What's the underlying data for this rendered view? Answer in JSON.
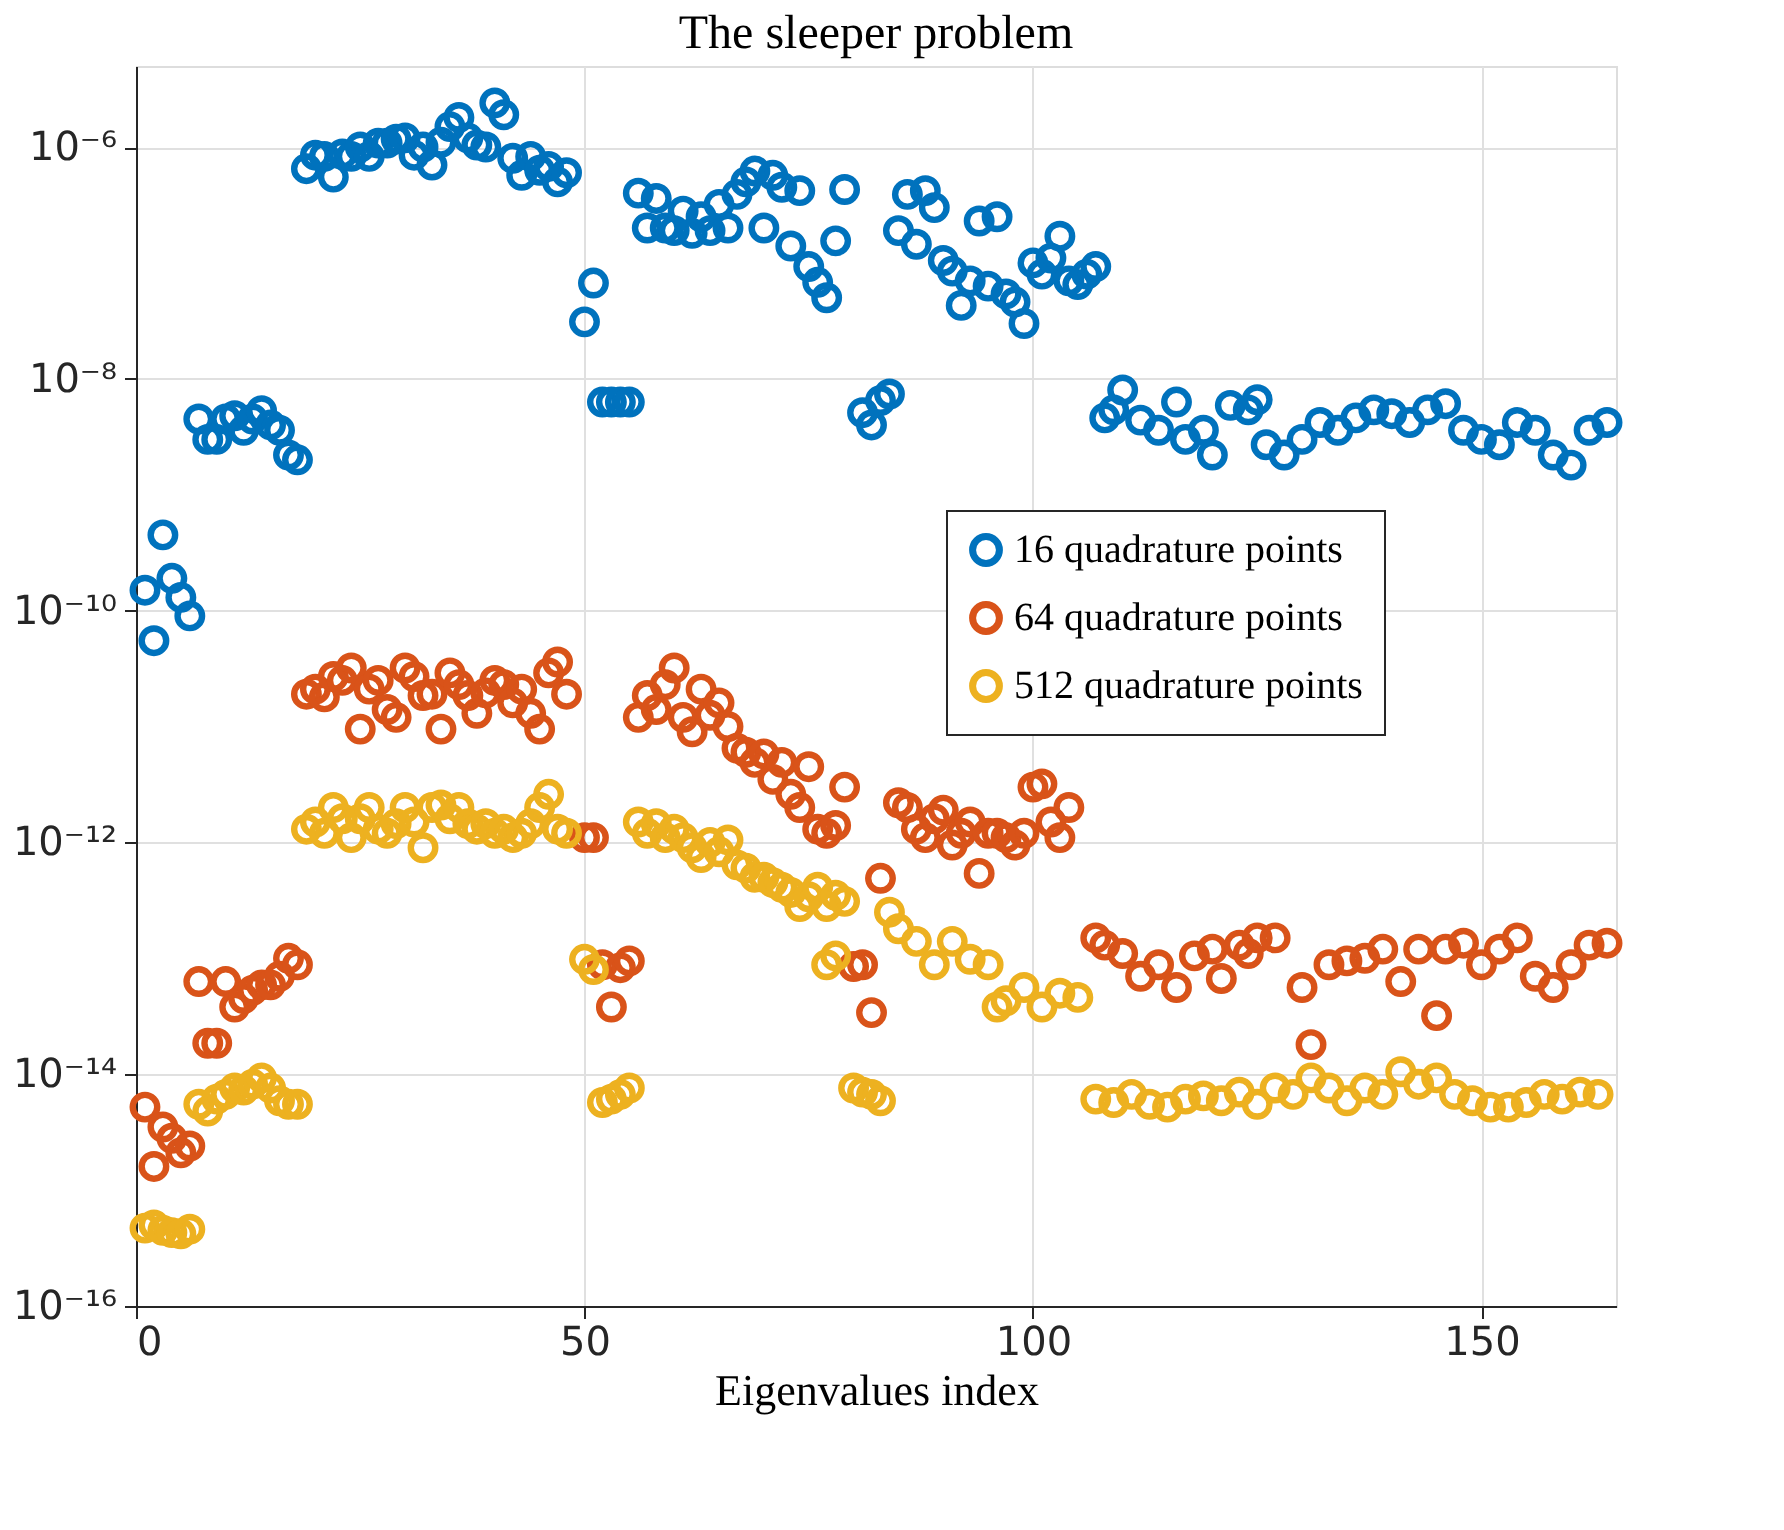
{
  "chart_data": {
    "type": "scatter",
    "title": "The sleeper problem",
    "xlabel": "Eigenvalues index",
    "xlim": [
      0,
      165
    ],
    "xticks": [
      0,
      50,
      100,
      150
    ],
    "ylim": [
      1e-16,
      5e-06
    ],
    "yticks": [
      {
        "value": 1e-16,
        "label": "10⁻¹⁶"
      },
      {
        "value": 1e-14,
        "label": "10⁻¹⁴"
      },
      {
        "value": 1e-12,
        "label": "10⁻¹²"
      },
      {
        "value": 1e-10,
        "label": "10⁻¹⁰"
      },
      {
        "value": 1e-08,
        "label": "10⁻⁸"
      },
      {
        "value": 1e-06,
        "label": "10⁻⁶"
      }
    ],
    "log": "y",
    "grid": true,
    "legend": "right",
    "marker": "circle",
    "series": [
      {
        "name": "16 quadrature points",
        "color": "#0072bd",
        "x": [
          1,
          2,
          3,
          4,
          5,
          6,
          7,
          8,
          9,
          10,
          11,
          12,
          13,
          14,
          15,
          16,
          17,
          18,
          19,
          20,
          21,
          22,
          23,
          24,
          25,
          26,
          27,
          28,
          29,
          30,
          31,
          32,
          33,
          34,
          35,
          36,
          37,
          38,
          39,
          40,
          41,
          42,
          43,
          44,
          45,
          46,
          47,
          48,
          50,
          51,
          52,
          53,
          54,
          55,
          56,
          57,
          58,
          59,
          60,
          61,
          62,
          63,
          64,
          65,
          66,
          67,
          68,
          69,
          70,
          71,
          72,
          73,
          74,
          75,
          76,
          77,
          78,
          79,
          81,
          82,
          83,
          84,
          85,
          86,
          87,
          88,
          89,
          90,
          91,
          92,
          93,
          94,
          95,
          96,
          97,
          98,
          99,
          100,
          101,
          102,
          103,
          104,
          105,
          106,
          107,
          108,
          109,
          110,
          112,
          114,
          116,
          117,
          119,
          120,
          122,
          124,
          125,
          126,
          128,
          130,
          132,
          134,
          136,
          138,
          140,
          142,
          144,
          146,
          148,
          150,
          152,
          154,
          156,
          158,
          160,
          162,
          164
        ],
        "values": [
          1.5e-10,
          5.5e-11,
          4.5e-10,
          1.9e-10,
          1.3e-10,
          9e-11,
          4.5e-09,
          3e-09,
          3e-09,
          4.5e-09,
          4.8e-09,
          3.6e-09,
          4.5e-09,
          5.3e-09,
          4e-09,
          3.6e-09,
          2.2e-09,
          2e-09,
          6.5e-07,
          8.5e-07,
          8.3e-07,
          5.5e-07,
          8.7e-07,
          8.3e-07,
          1e-06,
          8.3e-07,
          1.08e-06,
          1.08e-06,
          1.17e-06,
          1.2e-06,
          8.5e-07,
          1e-06,
          7e-07,
          1.1e-06,
          1.5e-06,
          1.8e-06,
          1.2e-06,
          1.04e-06,
          1e-06,
          2.4e-06,
          1.9e-06,
          8e-07,
          5.7e-07,
          8.3e-07,
          6.3e-07,
          6.8e-07,
          5e-07,
          6e-07,
          3.1e-08,
          6.7e-08,
          6.3e-09,
          6.3e-09,
          6.3e-09,
          6.3e-09,
          4e-07,
          2e-07,
          3.6e-07,
          2e-07,
          1.9e-07,
          2.8e-07,
          1.8e-07,
          2.5e-07,
          1.9e-07,
          3.2e-07,
          2e-07,
          3.9e-07,
          5e-07,
          6.2e-07,
          2e-07,
          5.7e-07,
          4.5e-07,
          1.4e-07,
          4.2e-07,
          9.3e-08,
          6.8e-08,
          5e-08,
          1.55e-07,
          4.3e-07,
          5.1e-09,
          4e-09,
          6.5e-09,
          7.4e-09,
          1.9e-07,
          3.9e-07,
          1.45e-07,
          4.2e-07,
          3e-07,
          1.05e-07,
          8.5e-08,
          4.3e-08,
          7e-08,
          2.3e-07,
          6.3e-08,
          2.5e-07,
          5.4e-08,
          4.6e-08,
          3e-08,
          1e-07,
          8e-08,
          1.1e-07,
          1.7e-07,
          7e-08,
          6.5e-08,
          8e-08,
          9.3e-08,
          4.6e-09,
          5.4e-09,
          8e-09,
          4.4e-09,
          3.6e-09,
          6.3e-09,
          3e-09,
          3.6e-09,
          2.2e-09,
          5.9e-09,
          5.4e-09,
          6.6e-09,
          2.7e-09,
          2.2e-09,
          3e-09,
          4.2e-09,
          3.6e-09,
          4.6e-09,
          5.4e-09,
          5e-09,
          4.2e-09,
          5.4e-09,
          6.1e-09,
          3.6e-09,
          3e-09,
          2.7e-09,
          4.2e-09,
          3.6e-09,
          2.2e-09,
          1.8e-09,
          3.6e-09,
          4.2e-09
        ]
      },
      {
        "name": "64 quadrature points",
        "color": "#d95319",
        "x": [
          1,
          2,
          3,
          4,
          5,
          6,
          7,
          8,
          9,
          10,
          11,
          12,
          13,
          14,
          15,
          16,
          17,
          18,
          19,
          20,
          21,
          22,
          23,
          24,
          25,
          26,
          27,
          28,
          29,
          30,
          31,
          32,
          33,
          34,
          35,
          36,
          37,
          38,
          39,
          40,
          41,
          42,
          43,
          44,
          45,
          46,
          47,
          48,
          50,
          51,
          52,
          53,
          54,
          55,
          56,
          57,
          58,
          59,
          60,
          61,
          62,
          63,
          64,
          65,
          66,
          67,
          68,
          69,
          70,
          71,
          72,
          73,
          74,
          75,
          76,
          77,
          78,
          79,
          80,
          81,
          82,
          83,
          85,
          86,
          87,
          88,
          89,
          90,
          91,
          92,
          93,
          94,
          95,
          96,
          97,
          98,
          99,
          100,
          101,
          102,
          103,
          104,
          107,
          108,
          110,
          112,
          114,
          116,
          118,
          120,
          121,
          123,
          124,
          125,
          127,
          130,
          131,
          133,
          135,
          137,
          139,
          141,
          143,
          145,
          146,
          148,
          150,
          152,
          154,
          156,
          158,
          160,
          162,
          164
        ],
        "values": [
          5.2e-15,
          1.6e-15,
          3.5e-15,
          2.8e-15,
          2.1e-15,
          2.4e-15,
          6.3e-14,
          1.85e-14,
          1.85e-14,
          6.3e-14,
          3.8e-14,
          4.5e-14,
          5.3e-14,
          5.9e-14,
          5.9e-14,
          7e-14,
          1e-13,
          8.8e-14,
          1.9e-11,
          2.1e-11,
          1.8e-11,
          2.7e-11,
          2.5e-11,
          3.2e-11,
          9.5e-12,
          2.1e-11,
          2.5e-11,
          1.4e-11,
          1.2e-11,
          3.2e-11,
          2.7e-11,
          1.85e-11,
          1.9e-11,
          9.5e-12,
          2.9e-11,
          2.3e-11,
          1.85e-11,
          1.3e-11,
          1.95e-11,
          2.5e-11,
          2.3e-11,
          1.6e-11,
          2.1e-11,
          1.3e-11,
          9.5e-12,
          2.9e-11,
          3.6e-11,
          1.9e-11,
          1.1e-12,
          1.1e-12,
          8.8e-14,
          3.8e-14,
          8.3e-14,
          9.5e-14,
          1.2e-11,
          1.85e-11,
          1.4e-11,
          2.3e-11,
          3.2e-11,
          1.2e-11,
          9e-12,
          2.1e-11,
          1.25e-11,
          1.6e-11,
          1e-11,
          6.5e-12,
          6e-12,
          4.9e-12,
          5.8e-12,
          3.5e-12,
          4.9e-12,
          2.6e-12,
          2e-12,
          4.5e-12,
          1.3e-12,
          1.2e-12,
          1.4e-12,
          3e-12,
          8.5e-14,
          8.8e-14,
          3.4e-14,
          4.9e-13,
          2.2e-12,
          2e-12,
          1.3e-12,
          1.1e-12,
          1.6e-12,
          1.9e-12,
          9.5e-13,
          1.2e-12,
          1.5e-12,
          5.4e-13,
          1.2e-12,
          1.2e-12,
          1.1e-12,
          9.5e-13,
          1.2e-12,
          3e-12,
          3.2e-12,
          1.5e-12,
          1.1e-12,
          2e-12,
          1.5e-13,
          1.3e-13,
          1.1e-13,
          7e-14,
          8.8e-14,
          5.6e-14,
          1.05e-13,
          1.2e-13,
          6.7e-14,
          1.3e-13,
          1.1e-13,
          1.5e-13,
          1.5e-13,
          5.6e-14,
          1.8e-14,
          8.8e-14,
          9.5e-14,
          1e-13,
          1.2e-13,
          6.3e-14,
          1.2e-13,
          3.2e-14,
          1.2e-13,
          1.35e-13,
          8.8e-14,
          1.2e-13,
          1.5e-13,
          7e-14,
          5.6e-14,
          8.8e-14,
          1.3e-13,
          1.35e-13
        ]
      },
      {
        "name": "512 quadrature points",
        "color": "#edb120",
        "x": [
          1,
          2,
          3,
          4,
          5,
          6,
          7,
          8,
          9,
          10,
          11,
          12,
          13,
          14,
          15,
          16,
          17,
          18,
          19,
          20,
          21,
          22,
          23,
          24,
          25,
          26,
          27,
          28,
          29,
          30,
          31,
          32,
          33,
          34,
          35,
          36,
          37,
          38,
          39,
          40,
          41,
          42,
          43,
          44,
          45,
          46,
          47,
          48,
          50,
          51,
          52,
          53,
          54,
          55,
          56,
          57,
          58,
          59,
          60,
          61,
          62,
          63,
          64,
          65,
          66,
          67,
          68,
          69,
          70,
          71,
          72,
          73,
          74,
          75,
          76,
          77,
          78,
          79,
          77,
          78,
          80,
          81,
          82,
          83,
          84,
          85,
          87,
          89,
          91,
          93,
          95,
          96,
          97,
          99,
          101,
          103,
          105,
          107,
          109,
          111,
          113,
          115,
          117,
          119,
          121,
          123,
          125,
          127,
          129,
          131,
          133,
          135,
          137,
          139,
          141,
          143,
          145,
          147,
          149,
          151,
          153,
          155,
          157,
          159,
          161,
          163
        ],
        "values": [
          4.7e-16,
          5e-16,
          4.5e-16,
          4.3e-16,
          4.2e-16,
          4.6e-16,
          5.5e-15,
          4.8e-15,
          6.1e-15,
          6.7e-15,
          7.6e-15,
          7.3e-15,
          8.2e-15,
          9.3e-15,
          7.6e-15,
          5.9e-15,
          5.5e-15,
          5.5e-15,
          1.3e-12,
          1.5e-12,
          1.2e-12,
          2e-12,
          1.6e-12,
          1.1e-12,
          1.6e-12,
          2e-12,
          1.3e-12,
          1.2e-12,
          1.45e-12,
          2e-12,
          1.5e-12,
          9e-13,
          2e-12,
          2.1e-12,
          1.6e-12,
          2e-12,
          1.45e-12,
          1.3e-12,
          1.45e-12,
          1.2e-12,
          1.3e-12,
          1.1e-12,
          1.2e-12,
          1.45e-12,
          2e-12,
          2.6e-12,
          1.3e-12,
          1.2e-12,
          9.8e-14,
          8e-14,
          5.7e-15,
          6.1e-15,
          6.7e-15,
          7.6e-15,
          1.5e-12,
          1.2e-12,
          1.45e-12,
          1.1e-12,
          1.3e-12,
          1.1e-12,
          9e-13,
          7.4e-13,
          1e-12,
          8.3e-13,
          1.05e-12,
          6.4e-13,
          6e-13,
          5e-13,
          5e-13,
          4.5e-13,
          4.1e-13,
          3.7e-13,
          2.8e-13,
          3.4e-13,
          4.1e-13,
          2.8e-13,
          3.5e-13,
          3.1e-13,
          8.8e-14,
          1.05e-13,
          7.6e-15,
          7e-15,
          6.7e-15,
          5.9e-15,
          2.5e-13,
          1.8e-13,
          1.4e-13,
          8.8e-14,
          1.4e-13,
          9.8e-14,
          8.8e-14,
          3.8e-14,
          4.3e-14,
          5.6e-14,
          3.8e-14,
          5e-14,
          4.6e-14,
          6.1e-15,
          5.7e-15,
          6.7e-15,
          5.5e-15,
          5.2e-15,
          6.1e-15,
          6.5e-15,
          5.9e-15,
          7e-15,
          5.5e-15,
          7.6e-15,
          6.7e-15,
          9.3e-15,
          7.6e-15,
          5.9e-15,
          7.6e-15,
          6.7e-15,
          1.05e-14,
          8.2e-15,
          9.3e-15,
          6.7e-15,
          5.9e-15,
          5.2e-15,
          5.2e-15,
          5.7e-15,
          6.7e-15,
          6.1e-15,
          7e-15,
          6.7e-15
        ]
      }
    ]
  }
}
